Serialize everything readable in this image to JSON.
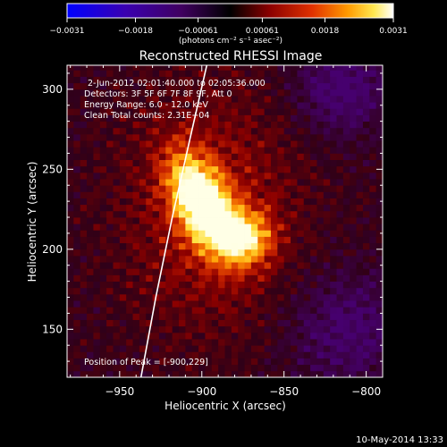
{
  "chart_data": {
    "type": "heatmap",
    "title": "Reconstructed RHESSI Image",
    "xlabel": "Heliocentric X (arcsec)",
    "ylabel": "Heliocentric Y (arcsec)",
    "xlim": [
      -982,
      -790
    ],
    "ylim": [
      120,
      315
    ],
    "x_ticks": [
      -950,
      -900,
      -850,
      -800
    ],
    "x_tick_labels": [
      "−950",
      "−900",
      "−850",
      "−800"
    ],
    "y_ticks": [
      150,
      200,
      250,
      300
    ],
    "y_tick_labels": [
      "150",
      "200",
      "250",
      "300"
    ],
    "colorbar": {
      "min": -0.0031,
      "max": 0.0031,
      "ticks": [
        -0.0031,
        -0.0018,
        -0.00061,
        0.00061,
        0.0018,
        0.0031
      ],
      "tick_labels": [
        "−0.0031",
        "−0.0018",
        "−0.00061",
        "0.00061",
        "0.0018",
        "0.0031"
      ],
      "units": "(photons cm⁻² s⁻¹ asec⁻²)",
      "colors": [
        "#0000ff",
        "#4400aa",
        "#4a0070",
        "#000000",
        "#7a0000",
        "#dd3300",
        "#ff9900",
        "#ffee55",
        "#ffffff"
      ]
    },
    "annotations": [
      "2-Jun-2012 02:01:40.000 to 02:05:36.000",
      "Detectors: 3F 5F 6F 7F 8F 9F, Att 0",
      "Energy Range: 6.0 - 12.0 keV",
      "Clean    Total counts: 2.31E+04"
    ],
    "peak_label": "Position of Peak = [-900,229]",
    "peaks": [
      {
        "x": -900,
        "y": 229,
        "value": 0.0031
      },
      {
        "x": -873,
        "y": 207,
        "value": 0.002
      }
    ],
    "limb": [
      [
        -937,
        120
      ],
      [
        -928,
        170
      ],
      [
        -918,
        220
      ],
      [
        -907,
        270
      ],
      [
        -897,
        315
      ]
    ]
  },
  "footer": {
    "date": "10-May-2014 13:33"
  }
}
